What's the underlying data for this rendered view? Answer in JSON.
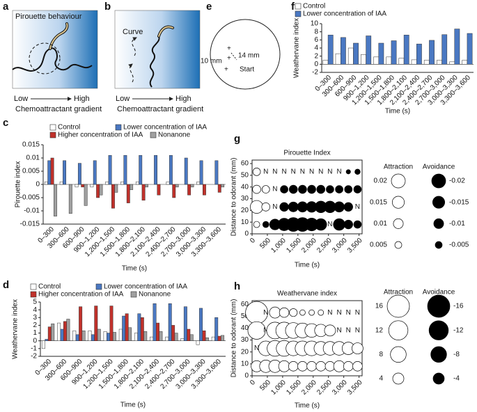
{
  "panel_letters": [
    "a",
    "b",
    "c",
    "d",
    "e",
    "f",
    "g",
    "h"
  ],
  "diagram_a": {
    "label": "Pirouette behaviour",
    "low": "Low",
    "high": "High",
    "axis_label": "Chemoattractant gradient"
  },
  "diagram_b": {
    "label": "Curve",
    "low": "Low",
    "high": "High",
    "axis_label": "Chemoattractant gradient"
  },
  "diagram_e": {
    "diameter": "10 mm",
    "distance": "14 mm",
    "start": "Start"
  },
  "chart_data": [
    {
      "type": "bar",
      "y_label": "Weathervane index",
      "x_label": "Time (s)",
      "categories": [
        "0–300",
        "300–600",
        "600–900",
        "900–1,200",
        "1,200–1,500",
        "1,500–1,800",
        "1,800–2,100",
        "2,100–2,400",
        "2,400–2,700",
        "2,700–3,000",
        "3,000–3,300",
        "3,300–3,600"
      ],
      "series": [
        {
          "name": "Control",
          "color": "#ffffff",
          "values": [
            1.0,
            2.6,
            4.0,
            2.4,
            1.8,
            1.8,
            1.5,
            1.1,
            1.0,
            1.0,
            0.6,
            1.0
          ]
        },
        {
          "name": "Lower concentration of IAA",
          "color": "#4a78c2",
          "values": [
            7.2,
            6.6,
            5.2,
            7.0,
            5.2,
            5.8,
            7.2,
            5.0,
            5.9,
            7.3,
            8.7,
            7.6
          ]
        }
      ],
      "ylim": [
        -2,
        10
      ],
      "yticks": [
        -2,
        0,
        2,
        4,
        6,
        8,
        10
      ]
    },
    {
      "type": "bar",
      "y_label": "Pirouette index",
      "x_label": "Time (s)",
      "categories": [
        "0–300",
        "300–600",
        "600–900",
        "900–1,200",
        "1,200–1,500",
        "1,500–1,800",
        "1,800–2,100",
        "2,100–2,400",
        "2,400–2,700",
        "2,700–3,000",
        "3,000–3,300",
        "3,300–3,600"
      ],
      "series": [
        {
          "name": "Control",
          "color": "#ffffff",
          "values": [
            0.001,
            0.001,
            -0.001,
            -0.001,
            0.001,
            0.001,
            0.001,
            0,
            0.001,
            0,
            0.001,
            0
          ]
        },
        {
          "name": "Lower concentration of IAA",
          "color": "#4a78c2",
          "values": [
            0.009,
            0.009,
            0.008,
            0.009,
            0.011,
            0.011,
            0.011,
            0.011,
            0.011,
            0.01,
            0.009,
            0.009
          ]
        },
        {
          "name": "Higher concentration of IAA",
          "color": "#c0312b",
          "values": [
            0.01,
            0,
            -0.001,
            -0.005,
            -0.009,
            -0.007,
            -0.006,
            -0.004,
            -0.005,
            -0.004,
            -0.004,
            -0.003
          ]
        },
        {
          "name": "Nonanone",
          "color": "#a0a0a0",
          "values": [
            -0.012,
            -0.011,
            -0.008,
            -0.004,
            -0.003,
            -0.002,
            -0.001,
            0,
            -0.001,
            -0.001,
            0,
            -0.001
          ]
        }
      ],
      "ylim": [
        -0.015,
        0.015
      ],
      "yticks": [
        -0.015,
        -0.01,
        -0.005,
        0,
        0.005,
        0.01,
        0.015
      ]
    },
    {
      "type": "bubble",
      "title": "Pirouette Index",
      "x_label": "Time (s)",
      "y_label": "Distance to odorant (mm)",
      "x": [
        150,
        450,
        750,
        1050,
        1350,
        1650,
        1950,
        2250,
        2550,
        2850,
        3150,
        3450
      ],
      "series": [
        {
          "y": 53,
          "values": [
            0.006,
            null,
            null,
            null,
            null,
            null,
            null,
            null,
            null,
            null,
            -0.002,
            -0.003
          ],
          "value_labels": [
            null,
            "N",
            "N",
            "N",
            "N",
            "N",
            "N",
            "N",
            "N",
            "N",
            null,
            null
          ]
        },
        {
          "y": 38,
          "values": [
            0.007,
            0.006,
            null,
            -0.006,
            -0.007,
            -0.007,
            -0.007,
            -0.007,
            -0.006,
            -0.006,
            -0.006,
            -0.006
          ],
          "value_labels": [
            null,
            null,
            "N",
            null,
            null,
            null,
            null,
            null,
            null,
            null,
            null,
            null
          ]
        },
        {
          "y": 23,
          "values": [
            0.017,
            0.007,
            null,
            -0.008,
            -0.01,
            -0.011,
            -0.012,
            -0.014,
            -0.014,
            -0.011,
            -0.008,
            null
          ],
          "value_labels": [
            null,
            null,
            "N",
            null,
            null,
            null,
            null,
            null,
            null,
            null,
            null,
            "N"
          ]
        },
        {
          "y": 8,
          "values": [
            0.004,
            -0.004,
            -0.012,
            -0.016,
            -0.02,
            -0.02,
            -0.017,
            -0.014,
            null,
            -0.014,
            -0.008,
            -0.006
          ],
          "value_labels": [
            null,
            null,
            null,
            null,
            null,
            null,
            null,
            null,
            "N",
            null,
            null,
            null
          ]
        }
      ],
      "xlim": [
        0,
        3600
      ],
      "xticks": [
        0,
        500,
        {
          "value": 1000,
          "label": "1,000"
        },
        {
          "value": 1500,
          "label": "1,500"
        },
        {
          "value": 2000,
          "label": "2,000"
        },
        {
          "value": 2500,
          "label": "2,500"
        },
        {
          "value": 3000,
          "label": "3,000"
        },
        {
          "value": 3500,
          "label": "3,500"
        }
      ],
      "ylim": [
        0,
        63
      ],
      "yticks": [
        0,
        10,
        20,
        30,
        40,
        50,
        60
      ],
      "size_legend": {
        "attraction": "Attraction",
        "avoidance": "Avoidance",
        "positive": [
          0.02,
          0.015,
          0.01,
          0.005
        ],
        "negative": [
          -0.02,
          -0.015,
          -0.01,
          -0.005
        ]
      }
    },
    {
      "type": "bar",
      "y_label": "Weathervane index",
      "x_label": "Time (s)",
      "categories": [
        "0–300",
        "300–600",
        "600–900",
        "900–1,200",
        "1,200–1,500",
        "1,500–1,800",
        "1,800–2,100",
        "2,100–2,400",
        "2,400–2,700",
        "2,700–3,000",
        "3,000–3,300",
        "3,300–3,600"
      ],
      "series": [
        {
          "name": "Control",
          "color": "#ffffff",
          "values": [
            -1.0,
            2.3,
            1.3,
            1.3,
            1.2,
            1.5,
            1.0,
            0.5,
            0.5,
            0.3,
            -0.5,
            0.5
          ]
        },
        {
          "name": "Lower concentration of IAA",
          "color": "#4a78c2",
          "values": [
            0.2,
            1.5,
            0.8,
            0.8,
            1.0,
            3.2,
            3.5,
            4.8,
            4.8,
            4.4,
            4.2,
            3.0
          ]
        },
        {
          "name": "Higher concentration of IAA",
          "color": "#c0312b",
          "values": [
            1.8,
            2.5,
            4.4,
            4.5,
            4.5,
            3.5,
            3.0,
            2.3,
            2.0,
            1.5,
            1.3,
            0.6
          ]
        },
        {
          "name": "Nonanone",
          "color": "#a0a0a0",
          "values": [
            2.2,
            2.8,
            1.3,
            1.5,
            1.1,
            1.7,
            1.2,
            1.2,
            1.0,
            0.8,
            0.4,
            0.7
          ]
        }
      ],
      "ylim": [
        -2,
        5
      ],
      "yticks": [
        -2,
        -1,
        0,
        1,
        2,
        3,
        4,
        5
      ]
    },
    {
      "type": "bubble",
      "title": "Weathervane index",
      "x_label": "Time (s)",
      "y_label": "Distance to odorant (mm)",
      "x": [
        150,
        450,
        750,
        1050,
        1350,
        1650,
        1950,
        2250,
        2550,
        2850,
        3150,
        3450
      ],
      "series": [
        {
          "y": 53,
          "values": [
            16,
            null,
            4,
            3,
            2,
            1,
            1,
            1,
            null,
            null,
            null,
            null
          ],
          "value_labels": [
            null,
            "N",
            null,
            null,
            null,
            null,
            null,
            null,
            "N",
            "N",
            "N",
            "N"
          ]
        },
        {
          "y": 38,
          "values": [
            10,
            null,
            9,
            9,
            8,
            7,
            6,
            5,
            4,
            null,
            null,
            null
          ],
          "value_labels": [
            null,
            "N",
            null,
            null,
            null,
            null,
            null,
            null,
            null,
            "N",
            "N",
            "N"
          ]
        },
        {
          "y": 23,
          "values": [
            null,
            7,
            8,
            8,
            7,
            7,
            7,
            6,
            6,
            6,
            5,
            4
          ],
          "value_labels": [
            "N",
            null,
            null,
            null,
            null,
            null,
            null,
            null,
            null,
            null,
            null,
            null
          ]
        },
        {
          "y": 8,
          "values": [
            4,
            5,
            5,
            4,
            3,
            3,
            3,
            3,
            3,
            4,
            3,
            3
          ],
          "value_labels": [
            null,
            null,
            null,
            null,
            null,
            null,
            null,
            null,
            null,
            null,
            null,
            null
          ]
        }
      ],
      "xlim": [
        0,
        3600
      ],
      "xticks": [
        0,
        500,
        {
          "value": 1000,
          "label": "1,000"
        },
        {
          "value": 1500,
          "label": "1,500"
        },
        {
          "value": 2000,
          "label": "2,000"
        },
        {
          "value": 2500,
          "label": "2,500"
        },
        {
          "value": 3000,
          "label": "3,000"
        },
        {
          "value": 3500,
          "label": "3,500"
        }
      ],
      "ylim": [
        0,
        63
      ],
      "yticks": [
        0,
        10,
        20,
        30,
        40,
        50,
        60
      ],
      "size_legend": {
        "attraction": "Attraction",
        "avoidance": "Avoidance",
        "positive": [
          16,
          12,
          8,
          4
        ],
        "negative": [
          -16,
          -12,
          -8,
          -4
        ]
      }
    }
  ]
}
